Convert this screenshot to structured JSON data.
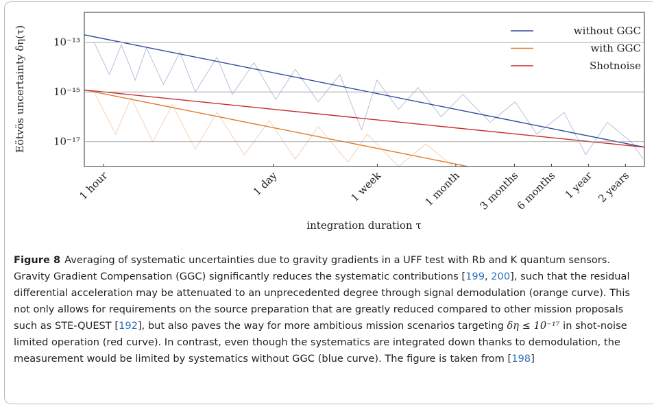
{
  "chart_data": {
    "type": "line",
    "xscale": "log",
    "yscale": "log",
    "xlabel": "integration duration τ",
    "ylabel": "Eötvös uncertainty δη(τ)",
    "xlim": [
      2500,
      90000000
    ],
    "ylim": [
      1e-18,
      1.6e-12
    ],
    "xticks": [
      {
        "value": 3600,
        "label": "1 hour"
      },
      {
        "value": 86400,
        "label": "1 day"
      },
      {
        "value": 604800,
        "label": "1 week"
      },
      {
        "value": 2630000,
        "label": "1 month"
      },
      {
        "value": 7890000,
        "label": "3 months"
      },
      {
        "value": 15780000,
        "label": "6 months"
      },
      {
        "value": 31560000,
        "label": "1 year"
      },
      {
        "value": 63110000,
        "label": "2 years"
      }
    ],
    "yticks": [
      {
        "value": 1e-13,
        "label": "10⁻¹³"
      },
      {
        "value": 1e-15,
        "label": "10⁻¹⁵"
      },
      {
        "value": 1e-17,
        "label": "10⁻¹⁷"
      }
    ],
    "grid": true,
    "legend": "upper right",
    "series": [
      {
        "color": "#2f4a9a",
        "opacity": 0.35,
        "x": [
          3000,
          4000,
          5000,
          6500,
          8000,
          11000,
          15000,
          20000,
          30000,
          40000,
          60000,
          90000,
          130000,
          200000,
          300000,
          450000,
          600000,
          900000,
          1300000,
          2000000,
          3000000,
          5000000,
          8000000,
          12000000,
          20000000,
          30000000,
          45000000,
          70000000,
          88000000
        ],
        "values": [
          1e-13,
          5e-15,
          8e-14,
          3e-15,
          6e-14,
          2e-15,
          4e-14,
          1e-15,
          2.5e-14,
          8e-16,
          1.5e-14,
          5e-16,
          8e-15,
          4e-16,
          5e-15,
          3e-17,
          3e-15,
          2e-16,
          1.5e-15,
          1e-16,
          8e-16,
          6e-17,
          4e-16,
          2e-17,
          1.5e-16,
          3e-18,
          6e-17,
          1e-17,
          2e-18
        ]
      },
      {
        "color": "#e07b2a",
        "opacity": 0.35,
        "x": [
          3000,
          4500,
          6000,
          9000,
          13000,
          20000,
          30000,
          50000,
          80000,
          130000,
          200000,
          350000,
          500000,
          900000,
          1500000,
          2500000
        ],
        "values": [
          1e-15,
          2e-17,
          6e-16,
          1e-17,
          3e-16,
          5e-18,
          1.5e-16,
          3e-18,
          7e-17,
          2e-18,
          4e-17,
          1.5e-18,
          2e-17,
          1e-18,
          8e-18,
          1e-18
        ]
      },
      {
        "name": "without GGC",
        "color": "#2f4a9a",
        "x": [
          2500,
          90000000
        ],
        "values": [
          2e-13,
          6e-18
        ]
      },
      {
        "name": "with GGC",
        "color": "#e07b2a",
        "x": [
          2500,
          3300000
        ],
        "values": [
          1.2e-15,
          1e-18
        ]
      },
      {
        "name": "Shotnoise",
        "color": "#c62b2b",
        "x": [
          2500,
          90000000
        ],
        "values": [
          1.2e-15,
          6e-18
        ]
      }
    ]
  },
  "caption": {
    "label": "Figure 8",
    "parts": [
      {
        "text": "Averaging of systematic uncertainties due to gravity gradients in a UFF test with Rb and K quantum sensors. Gravity Gradient Compensation (GGC) significantly reduces the systematic contributions ["
      },
      {
        "text": "199",
        "link": true
      },
      {
        "text": ", "
      },
      {
        "text": "200",
        "link": true
      },
      {
        "text": "], such that the residual differential acceleration may be attenuated to an unprecedented degree through signal demodulation (orange curve). This not only allows for requirements on the source preparation that are greatly reduced compared to other mission proposals such as STE-QUEST ["
      },
      {
        "text": "192",
        "link": true
      },
      {
        "text": "], but also paves the way for more ambitious mission scenarios targeting "
      },
      {
        "text": "δη ≤ 10⁻¹⁷",
        "math": true
      },
      {
        "text": " in shot-noise limited operation (red curve). In contrast, even though the systematics are integrated down thanks to demodulation, the measurement would be limited by systematics without GGC (blue curve). The figure is taken from ["
      },
      {
        "text": "198",
        "link": true
      },
      {
        "text": "]"
      }
    ]
  }
}
